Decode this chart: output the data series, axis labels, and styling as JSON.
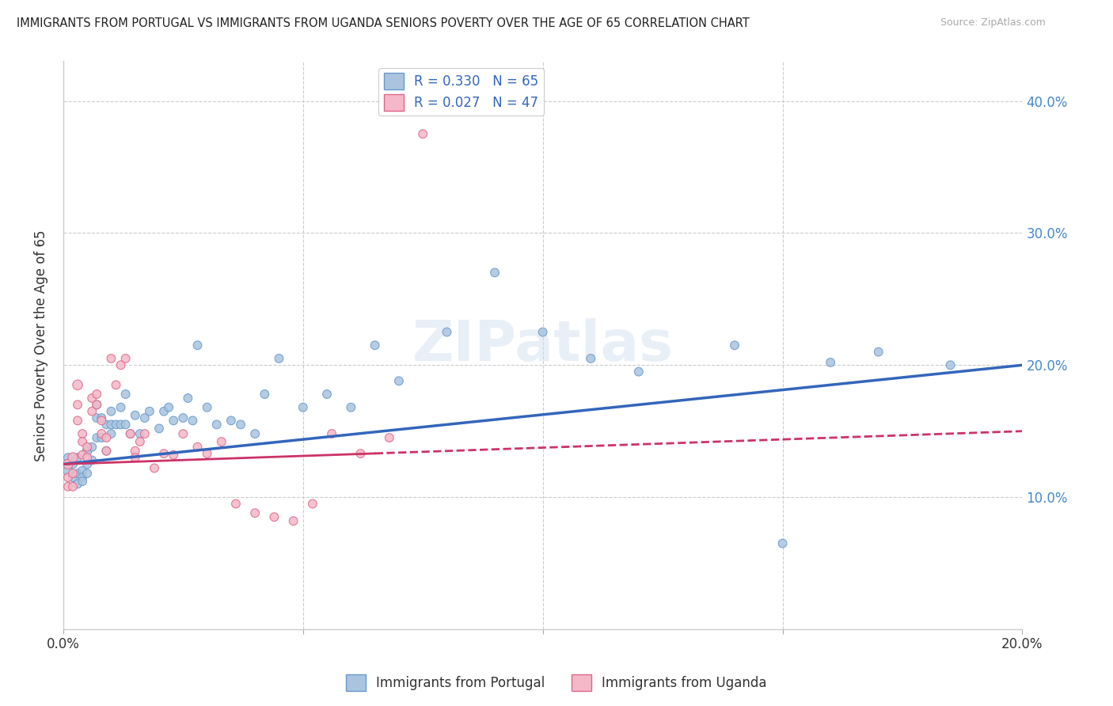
{
  "title": "IMMIGRANTS FROM PORTUGAL VS IMMIGRANTS FROM UGANDA SENIORS POVERTY OVER THE AGE OF 65 CORRELATION CHART",
  "source": "Source: ZipAtlas.com",
  "ylabel": "Seniors Poverty Over the Age of 65",
  "xlim": [
    0.0,
    0.2
  ],
  "ylim": [
    0.0,
    0.43
  ],
  "x_ticks": [
    0.0,
    0.05,
    0.1,
    0.15,
    0.2
  ],
  "y_ticks": [
    0.1,
    0.2,
    0.3,
    0.4
  ],
  "grid_color": "#cccccc",
  "bg_color": "#ffffff",
  "series": [
    {
      "name": "Immigrants from Portugal",
      "color": "#aac4e0",
      "edge_color": "#6699cc",
      "R": 0.33,
      "N": 65,
      "line_color": "#3366bb",
      "line_style": "solid",
      "x": [
        0.001,
        0.001,
        0.002,
        0.002,
        0.003,
        0.003,
        0.003,
        0.004,
        0.004,
        0.004,
        0.005,
        0.005,
        0.005,
        0.006,
        0.006,
        0.007,
        0.007,
        0.007,
        0.008,
        0.008,
        0.009,
        0.009,
        0.01,
        0.01,
        0.01,
        0.011,
        0.012,
        0.012,
        0.013,
        0.013,
        0.014,
        0.015,
        0.016,
        0.017,
        0.018,
        0.02,
        0.021,
        0.022,
        0.023,
        0.025,
        0.026,
        0.027,
        0.028,
        0.03,
        0.032,
        0.035,
        0.037,
        0.04,
        0.042,
        0.045,
        0.05,
        0.055,
        0.06,
        0.065,
        0.07,
        0.08,
        0.09,
        0.1,
        0.11,
        0.12,
        0.14,
        0.15,
        0.16,
        0.17,
        0.185
      ],
      "y": [
        0.12,
        0.13,
        0.125,
        0.115,
        0.13,
        0.118,
        0.11,
        0.12,
        0.115,
        0.112,
        0.135,
        0.125,
        0.118,
        0.138,
        0.128,
        0.17,
        0.16,
        0.145,
        0.16,
        0.145,
        0.155,
        0.135,
        0.165,
        0.155,
        0.148,
        0.155,
        0.168,
        0.155,
        0.178,
        0.155,
        0.148,
        0.162,
        0.148,
        0.16,
        0.165,
        0.152,
        0.165,
        0.168,
        0.158,
        0.16,
        0.175,
        0.158,
        0.215,
        0.168,
        0.155,
        0.158,
        0.155,
        0.148,
        0.178,
        0.205,
        0.168,
        0.178,
        0.168,
        0.215,
        0.188,
        0.225,
        0.27,
        0.225,
        0.205,
        0.195,
        0.215,
        0.065,
        0.202,
        0.21,
        0.2
      ],
      "size": [
        80,
        60,
        60,
        60,
        60,
        60,
        60,
        60,
        60,
        60,
        70,
        60,
        60,
        60,
        60,
        60,
        60,
        60,
        60,
        60,
        60,
        60,
        60,
        60,
        60,
        60,
        60,
        60,
        60,
        60,
        60,
        60,
        60,
        60,
        60,
        60,
        60,
        60,
        60,
        60,
        60,
        60,
        60,
        60,
        60,
        60,
        60,
        60,
        60,
        60,
        60,
        60,
        60,
        60,
        60,
        60,
        60,
        60,
        60,
        60,
        60,
        60,
        60,
        60,
        60
      ]
    },
    {
      "name": "Immigrants from Uganda",
      "color": "#f5b8c8",
      "edge_color": "#dd6688",
      "R": 0.027,
      "N": 47,
      "line_color": "#cc3366",
      "line_style": "solid",
      "line_style2": "dashed",
      "line_split": 0.065,
      "x": [
        0.001,
        0.001,
        0.001,
        0.002,
        0.002,
        0.002,
        0.003,
        0.003,
        0.003,
        0.004,
        0.004,
        0.004,
        0.005,
        0.005,
        0.006,
        0.006,
        0.007,
        0.007,
        0.008,
        0.008,
        0.009,
        0.009,
        0.01,
        0.011,
        0.012,
        0.013,
        0.014,
        0.015,
        0.015,
        0.016,
        0.017,
        0.019,
        0.021,
        0.023,
        0.025,
        0.028,
        0.03,
        0.033,
        0.036,
        0.04,
        0.044,
        0.048,
        0.052,
        0.056,
        0.062,
        0.068,
        0.075
      ],
      "y": [
        0.125,
        0.115,
        0.108,
        0.13,
        0.118,
        0.108,
        0.185,
        0.17,
        0.158,
        0.148,
        0.142,
        0.132,
        0.138,
        0.13,
        0.175,
        0.165,
        0.178,
        0.17,
        0.158,
        0.148,
        0.145,
        0.135,
        0.205,
        0.185,
        0.2,
        0.205,
        0.148,
        0.135,
        0.13,
        0.142,
        0.148,
        0.122,
        0.133,
        0.132,
        0.148,
        0.138,
        0.133,
        0.142,
        0.095,
        0.088,
        0.085,
        0.082,
        0.095,
        0.148,
        0.133,
        0.145,
        0.375
      ],
      "size": [
        80,
        60,
        60,
        80,
        60,
        60,
        80,
        60,
        60,
        60,
        60,
        60,
        60,
        60,
        60,
        60,
        60,
        60,
        60,
        60,
        60,
        60,
        60,
        60,
        60,
        60,
        60,
        60,
        60,
        60,
        60,
        60,
        60,
        60,
        60,
        60,
        60,
        60,
        60,
        60,
        60,
        60,
        60,
        60,
        60,
        60,
        60
      ]
    }
  ],
  "watermark": "ZIPatlas"
}
